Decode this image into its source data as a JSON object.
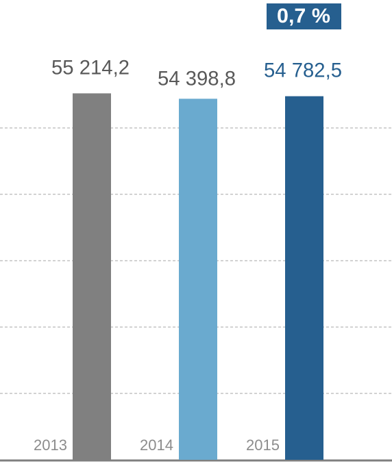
{
  "chart_data": {
    "type": "bar",
    "categories": [
      "2013",
      "2014",
      "2015"
    ],
    "values": [
      55214.2,
      54398.8,
      54782.5
    ],
    "value_labels": [
      "55 214,2",
      "54 398,8",
      "54 782,5"
    ],
    "colors": [
      "#808080",
      "#6aaacf",
      "#265f8f"
    ],
    "value_label_colors": [
      "#595959",
      "#595959",
      "#265f8f"
    ],
    "annotation": "0,7 %",
    "annotation_color": "#265f8f",
    "ylim": [
      0,
      60000
    ],
    "yticks": [
      10000,
      20000,
      30000,
      40000,
      50000
    ],
    "grid": true
  }
}
